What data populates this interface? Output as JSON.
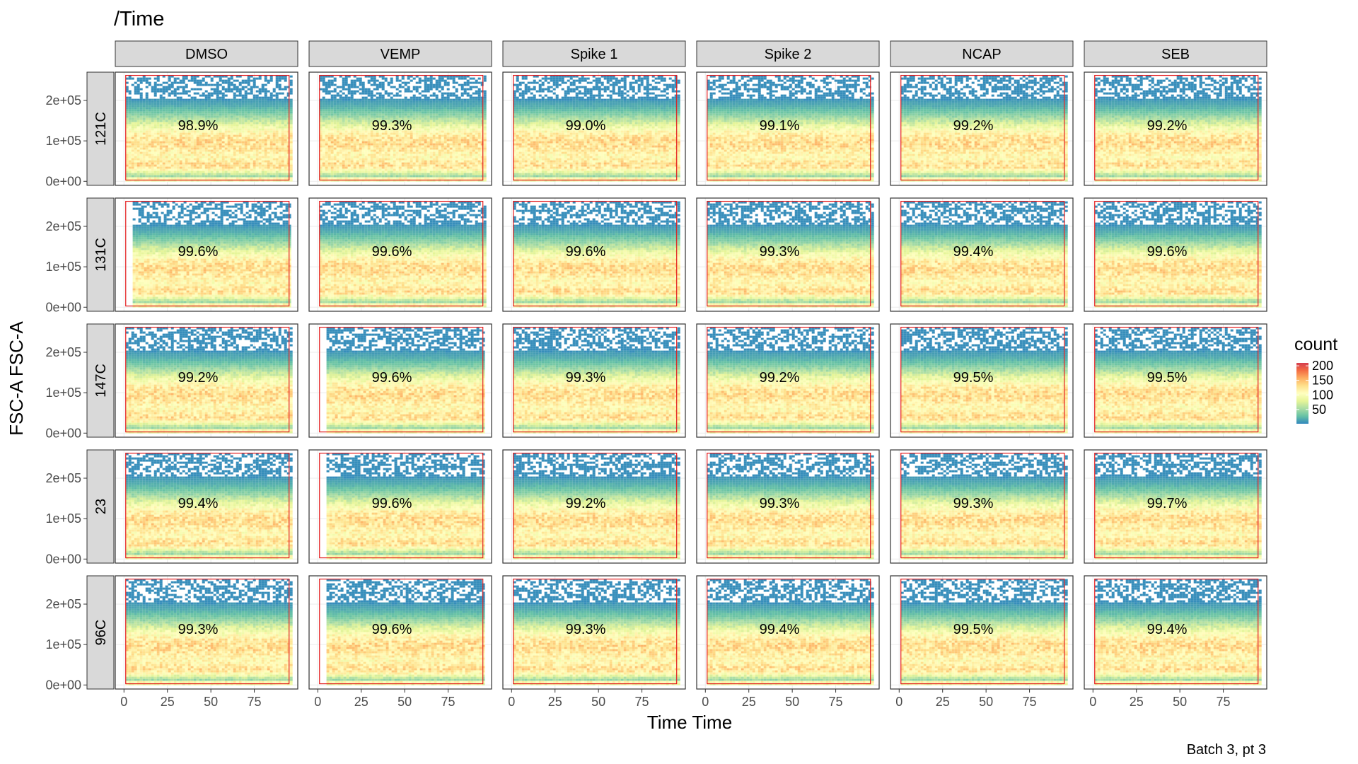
{
  "chart_data": {
    "type": "heatmap",
    "subtype": "faceted 2D density (flow cytometry gating)",
    "title": "/Time",
    "caption": "Batch 3, pt 3",
    "xlabel": "Time Time",
    "ylabel": "FSC-A FSC-A",
    "xlim": [
      -5,
      100
    ],
    "ylim": [
      -10000,
      270000
    ],
    "x_ticks": [
      0,
      25,
      50,
      75
    ],
    "x_tick_labels": [
      "0",
      "25",
      "50",
      "75"
    ],
    "y_ticks": [
      0,
      100000,
      200000
    ],
    "y_tick_labels": [
      "0e+00",
      "1e+05",
      "2e+05"
    ],
    "grid": true,
    "col_facets": [
      "DMSO",
      "VEMP",
      "Spike 1",
      "Spike 2",
      "NCAP",
      "SEB"
    ],
    "row_facets": [
      "121C",
      "131C",
      "147C",
      "23",
      "96C"
    ],
    "gate": {
      "color": "#e31a1c",
      "x_range": [
        1,
        95
      ],
      "y_range": [
        3000,
        262000
      ]
    },
    "percentages": [
      [
        "98.9%",
        "99.3%",
        "99.0%",
        "99.1%",
        "99.2%",
        "99.2%"
      ],
      [
        "99.6%",
        "99.6%",
        "99.6%",
        "99.3%",
        "99.4%",
        "99.6%"
      ],
      [
        "99.2%",
        "99.6%",
        "99.3%",
        "99.2%",
        "99.5%",
        "99.5%"
      ],
      [
        "99.4%",
        "99.6%",
        "99.2%",
        "99.3%",
        "99.3%",
        "99.7%"
      ],
      [
        "99.3%",
        "99.6%",
        "99.3%",
        "99.4%",
        "99.5%",
        "99.4%"
      ]
    ],
    "data_start_time": [
      [
        1,
        1,
        1,
        1,
        1,
        1
      ],
      [
        5,
        1,
        1,
        1,
        1,
        1
      ],
      [
        1,
        5,
        1,
        1,
        1,
        1
      ],
      [
        1,
        5,
        1,
        1,
        1,
        1
      ],
      [
        1,
        5,
        1,
        1,
        1,
        1
      ]
    ],
    "density_profile": {
      "fsc_a_bands": [
        {
          "center": 95000,
          "spread": 45000,
          "weight": 1.0
        },
        {
          "center": 35000,
          "spread": 14000,
          "weight": 0.55
        },
        {
          "center": 5000,
          "spread": 3000,
          "weight": 0.8
        }
      ]
    },
    "legend": {
      "title": "count",
      "placement": "right",
      "breaks": [
        50,
        100,
        150,
        200
      ],
      "labels": [
        "50",
        "100",
        "150",
        "200"
      ],
      "range": [
        1,
        210
      ],
      "palette": "Spectral (reversed)",
      "colors": [
        "#3288bd",
        "#66c2a5",
        "#abdda4",
        "#e6f598",
        "#ffffbf",
        "#fee08b",
        "#fdae61",
        "#f46d43",
        "#d53e4f"
      ]
    },
    "strip_fill": "#d9d9d9",
    "panel_border": "#333333"
  }
}
